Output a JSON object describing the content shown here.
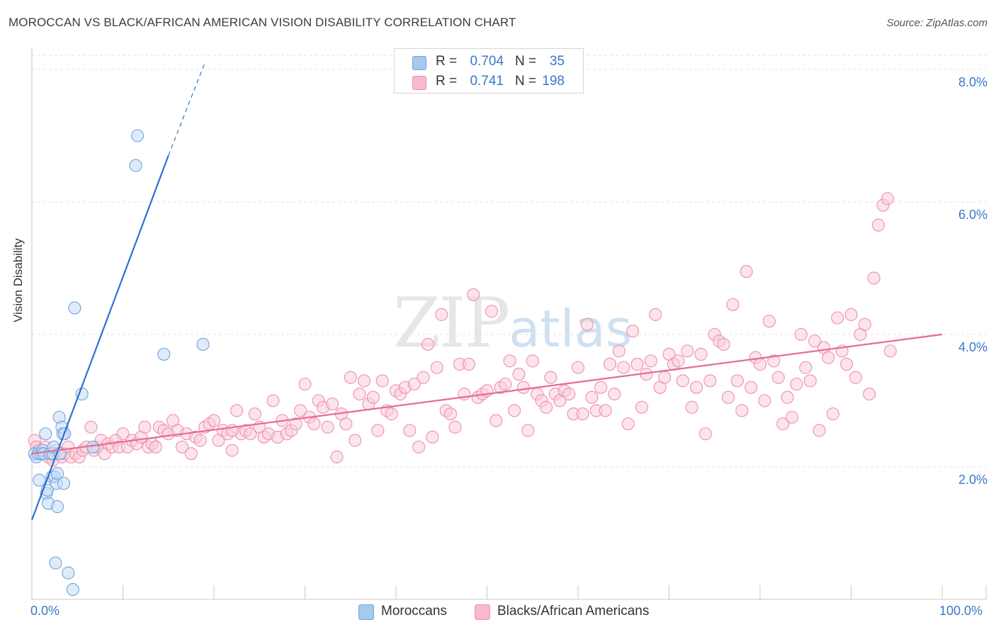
{
  "header": {
    "title": "MOROCCAN VS BLACK/AFRICAN AMERICAN VISION DISABILITY CORRELATION CHART",
    "source": "Source: ZipAtlas.com"
  },
  "watermark": {
    "zip": "ZIP",
    "atlas": "atlas"
  },
  "legend": {
    "rows": [
      {
        "r_label": "R =",
        "r_value": "0.704",
        "n_label": "N =",
        "n_value": "35",
        "color": "#a9c8ee",
        "stroke": "#6fa3e0"
      },
      {
        "r_label": "R =",
        "r_value": "0.741",
        "n_label": "N =",
        "n_value": "198",
        "color": "#f7b9cc",
        "stroke": "#ee8fae"
      }
    ]
  },
  "bottom_legend": [
    {
      "label": "Moroccans",
      "color": "#a9c8ee"
    },
    {
      "label": "Blacks/African Americans",
      "color": "#f7b9cc"
    }
  ],
  "chart_data": {
    "type": "scatter",
    "title": "MOROCCAN VS BLACK/AFRICAN AMERICAN VISION DISABILITY CORRELATION CHART",
    "xlabel": "",
    "ylabel": "Vision Disability",
    "xlim": [
      0,
      100
    ],
    "ylim": [
      0,
      8.0
    ],
    "x_tick_labels": [
      "0.0%",
      "100.0%"
    ],
    "y_ticks": [
      2.0,
      4.0,
      6.0,
      8.0
    ],
    "y_tick_labels": [
      "2.0%",
      "4.0%",
      "6.0%",
      "8.0%"
    ],
    "grid": true,
    "series": [
      {
        "name": "Moroccans",
        "color": "#6fa3e0",
        "fill": "#c6dbf5",
        "r": 0.704,
        "n": 35,
        "trend": {
          "x0": 0,
          "y0": 1.2,
          "x1": 15,
          "y1": 6.7,
          "dash_x1": 19,
          "dash_y1": 8.1
        },
        "points": [
          [
            0.3,
            2.2
          ],
          [
            0.5,
            2.15
          ],
          [
            0.7,
            2.2
          ],
          [
            0.8,
            1.8
          ],
          [
            1.0,
            2.2
          ],
          [
            1.2,
            2.25
          ],
          [
            1.3,
            2.2
          ],
          [
            1.5,
            2.5
          ],
          [
            1.6,
            1.6
          ],
          [
            1.7,
            1.65
          ],
          [
            1.8,
            1.45
          ],
          [
            2.0,
            2.2
          ],
          [
            2.2,
            1.85
          ],
          [
            2.3,
            2.2
          ],
          [
            2.4,
            2.3
          ],
          [
            2.5,
            1.85
          ],
          [
            2.7,
            1.75
          ],
          [
            2.8,
            1.9
          ],
          [
            2.8,
            1.4
          ],
          [
            3.0,
            2.75
          ],
          [
            3.1,
            2.2
          ],
          [
            3.3,
            2.6
          ],
          [
            3.4,
            2.5
          ],
          [
            3.5,
            1.75
          ],
          [
            3.6,
            2.5
          ],
          [
            2.6,
            0.55
          ],
          [
            4.0,
            0.4
          ],
          [
            4.5,
            0.15
          ],
          [
            4.7,
            4.4
          ],
          [
            5.5,
            3.1
          ],
          [
            6.7,
            2.3
          ],
          [
            11.4,
            6.55
          ],
          [
            11.6,
            7.0
          ],
          [
            14.5,
            3.7
          ],
          [
            18.8,
            3.85
          ]
        ]
      },
      {
        "name": "Blacks/African Americans",
        "color": "#ee8fae",
        "fill": "#f9cddb",
        "r": 0.741,
        "n": 198,
        "trend": {
          "x0": 0,
          "y0": 2.2,
          "x1": 100,
          "y1": 4.0
        },
        "points": [
          [
            0.3,
            2.4
          ],
          [
            0.5,
            2.3
          ],
          [
            0.8,
            2.25
          ],
          [
            1.2,
            2.2
          ],
          [
            1.5,
            2.3
          ],
          [
            1.8,
            2.15
          ],
          [
            2.0,
            2.2
          ],
          [
            2.3,
            2.1
          ],
          [
            2.7,
            2.25
          ],
          [
            3.0,
            2.2
          ],
          [
            3.3,
            2.15
          ],
          [
            3.6,
            2.2
          ],
          [
            4.0,
            2.3
          ],
          [
            4.3,
            2.15
          ],
          [
            4.8,
            2.2
          ],
          [
            5.2,
            2.15
          ],
          [
            5.6,
            2.25
          ],
          [
            6.0,
            2.3
          ],
          [
            6.5,
            2.6
          ],
          [
            6.8,
            2.25
          ],
          [
            7.2,
            2.3
          ],
          [
            7.6,
            2.4
          ],
          [
            8.0,
            2.2
          ],
          [
            8.4,
            2.35
          ],
          [
            8.8,
            2.3
          ],
          [
            9.2,
            2.4
          ],
          [
            9.6,
            2.3
          ],
          [
            10.0,
            2.5
          ],
          [
            10.5,
            2.3
          ],
          [
            11.0,
            2.4
          ],
          [
            11.5,
            2.35
          ],
          [
            12.0,
            2.45
          ],
          [
            12.4,
            2.6
          ],
          [
            12.8,
            2.3
          ],
          [
            13.2,
            2.35
          ],
          [
            13.6,
            2.3
          ],
          [
            14.0,
            2.6
          ],
          [
            14.5,
            2.55
          ],
          [
            15.0,
            2.5
          ],
          [
            15.5,
            2.7
          ],
          [
            16.0,
            2.55
          ],
          [
            16.5,
            2.3
          ],
          [
            17.0,
            2.5
          ],
          [
            17.5,
            2.2
          ],
          [
            18.0,
            2.45
          ],
          [
            18.5,
            2.4
          ],
          [
            19.0,
            2.6
          ],
          [
            19.5,
            2.65
          ],
          [
            20.0,
            2.7
          ],
          [
            20.5,
            2.4
          ],
          [
            21.0,
            2.55
          ],
          [
            21.5,
            2.5
          ],
          [
            22.0,
            2.25
          ],
          [
            22.5,
            2.85
          ],
          [
            23.0,
            2.5
          ],
          [
            23.5,
            2.55
          ],
          [
            24.0,
            2.5
          ],
          [
            24.5,
            2.8
          ],
          [
            25.0,
            2.6
          ],
          [
            25.5,
            2.45
          ],
          [
            26.0,
            2.5
          ],
          [
            26.5,
            3.0
          ],
          [
            27.0,
            2.45
          ],
          [
            27.5,
            2.7
          ],
          [
            28.0,
            2.5
          ],
          [
            28.5,
            2.55
          ],
          [
            29.0,
            2.65
          ],
          [
            29.5,
            2.85
          ],
          [
            30.0,
            3.25
          ],
          [
            30.5,
            2.75
          ],
          [
            31.0,
            2.65
          ],
          [
            31.5,
            3.0
          ],
          [
            32.0,
            2.9
          ],
          [
            32.5,
            2.6
          ],
          [
            33.0,
            2.95
          ],
          [
            33.5,
            2.15
          ],
          [
            34.0,
            2.8
          ],
          [
            34.5,
            2.65
          ],
          [
            35.0,
            3.35
          ],
          [
            35.5,
            2.4
          ],
          [
            36.0,
            3.1
          ],
          [
            36.5,
            3.3
          ],
          [
            37.0,
            2.95
          ],
          [
            37.5,
            3.05
          ],
          [
            38.0,
            2.55
          ],
          [
            38.5,
            3.3
          ],
          [
            39.0,
            2.85
          ],
          [
            39.5,
            2.8
          ],
          [
            40.0,
            3.15
          ],
          [
            40.5,
            3.1
          ],
          [
            41.0,
            3.2
          ],
          [
            41.5,
            2.55
          ],
          [
            42.0,
            3.25
          ],
          [
            42.5,
            2.3
          ],
          [
            43.0,
            3.35
          ],
          [
            43.5,
            3.85
          ],
          [
            44.0,
            2.45
          ],
          [
            44.5,
            3.5
          ],
          [
            45.0,
            4.3
          ],
          [
            45.5,
            2.85
          ],
          [
            46.0,
            2.8
          ],
          [
            46.5,
            2.6
          ],
          [
            47.0,
            3.55
          ],
          [
            47.5,
            3.1
          ],
          [
            48.0,
            3.55
          ],
          [
            48.5,
            4.6
          ],
          [
            49.0,
            3.05
          ],
          [
            49.5,
            3.1
          ],
          [
            50.0,
            3.15
          ],
          [
            50.5,
            4.35
          ],
          [
            51.0,
            2.7
          ],
          [
            51.5,
            3.2
          ],
          [
            52.0,
            3.25
          ],
          [
            52.5,
            3.6
          ],
          [
            53.0,
            2.85
          ],
          [
            53.5,
            3.4
          ],
          [
            54.0,
            3.2
          ],
          [
            54.5,
            2.55
          ],
          [
            55.0,
            3.6
          ],
          [
            55.5,
            3.1
          ],
          [
            56.0,
            3.0
          ],
          [
            56.5,
            2.9
          ],
          [
            57.0,
            3.35
          ],
          [
            57.5,
            3.1
          ],
          [
            58.0,
            3.0
          ],
          [
            58.5,
            3.15
          ],
          [
            59.0,
            3.1
          ],
          [
            59.5,
            2.8
          ],
          [
            60.0,
            3.5
          ],
          [
            60.5,
            2.8
          ],
          [
            61.0,
            4.15
          ],
          [
            61.5,
            3.05
          ],
          [
            62.0,
            2.85
          ],
          [
            62.5,
            3.2
          ],
          [
            63.0,
            2.85
          ],
          [
            63.5,
            3.55
          ],
          [
            64.0,
            3.1
          ],
          [
            64.5,
            3.75
          ],
          [
            65.0,
            3.5
          ],
          [
            65.5,
            2.65
          ],
          [
            66.0,
            4.05
          ],
          [
            66.5,
            3.55
          ],
          [
            67.0,
            2.9
          ],
          [
            67.5,
            3.4
          ],
          [
            68.0,
            3.6
          ],
          [
            68.5,
            4.3
          ],
          [
            69.0,
            3.2
          ],
          [
            69.5,
            3.35
          ],
          [
            70.0,
            3.7
          ],
          [
            70.5,
            3.55
          ],
          [
            71.0,
            3.6
          ],
          [
            71.5,
            3.3
          ],
          [
            72.0,
            3.75
          ],
          [
            72.5,
            2.9
          ],
          [
            73.0,
            3.2
          ],
          [
            73.5,
            3.7
          ],
          [
            74.0,
            2.5
          ],
          [
            74.5,
            3.3
          ],
          [
            75.0,
            4.0
          ],
          [
            75.5,
            3.9
          ],
          [
            76.0,
            3.85
          ],
          [
            76.5,
            3.05
          ],
          [
            77.0,
            4.45
          ],
          [
            77.5,
            3.3
          ],
          [
            78.0,
            2.85
          ],
          [
            78.5,
            4.95
          ],
          [
            79.0,
            3.2
          ],
          [
            79.5,
            3.65
          ],
          [
            80.0,
            3.55
          ],
          [
            80.5,
            3.0
          ],
          [
            81.0,
            4.2
          ],
          [
            81.5,
            3.6
          ],
          [
            82.0,
            3.35
          ],
          [
            82.5,
            2.65
          ],
          [
            83.0,
            3.05
          ],
          [
            83.5,
            2.75
          ],
          [
            84.0,
            3.25
          ],
          [
            84.5,
            4.0
          ],
          [
            85.0,
            3.5
          ],
          [
            85.5,
            3.3
          ],
          [
            86.0,
            3.9
          ],
          [
            86.5,
            2.55
          ],
          [
            87.0,
            3.8
          ],
          [
            87.5,
            3.65
          ],
          [
            88.0,
            2.8
          ],
          [
            88.5,
            4.25
          ],
          [
            89.0,
            3.75
          ],
          [
            89.5,
            3.55
          ],
          [
            90.0,
            4.3
          ],
          [
            90.5,
            3.35
          ],
          [
            91.0,
            4.0
          ],
          [
            91.5,
            4.15
          ],
          [
            92.0,
            3.1
          ],
          [
            92.5,
            4.85
          ],
          [
            93.0,
            5.65
          ],
          [
            93.5,
            5.95
          ],
          [
            94.0,
            6.05
          ],
          [
            94.3,
            3.75
          ],
          [
            22.0,
            2.55
          ]
        ]
      }
    ]
  }
}
